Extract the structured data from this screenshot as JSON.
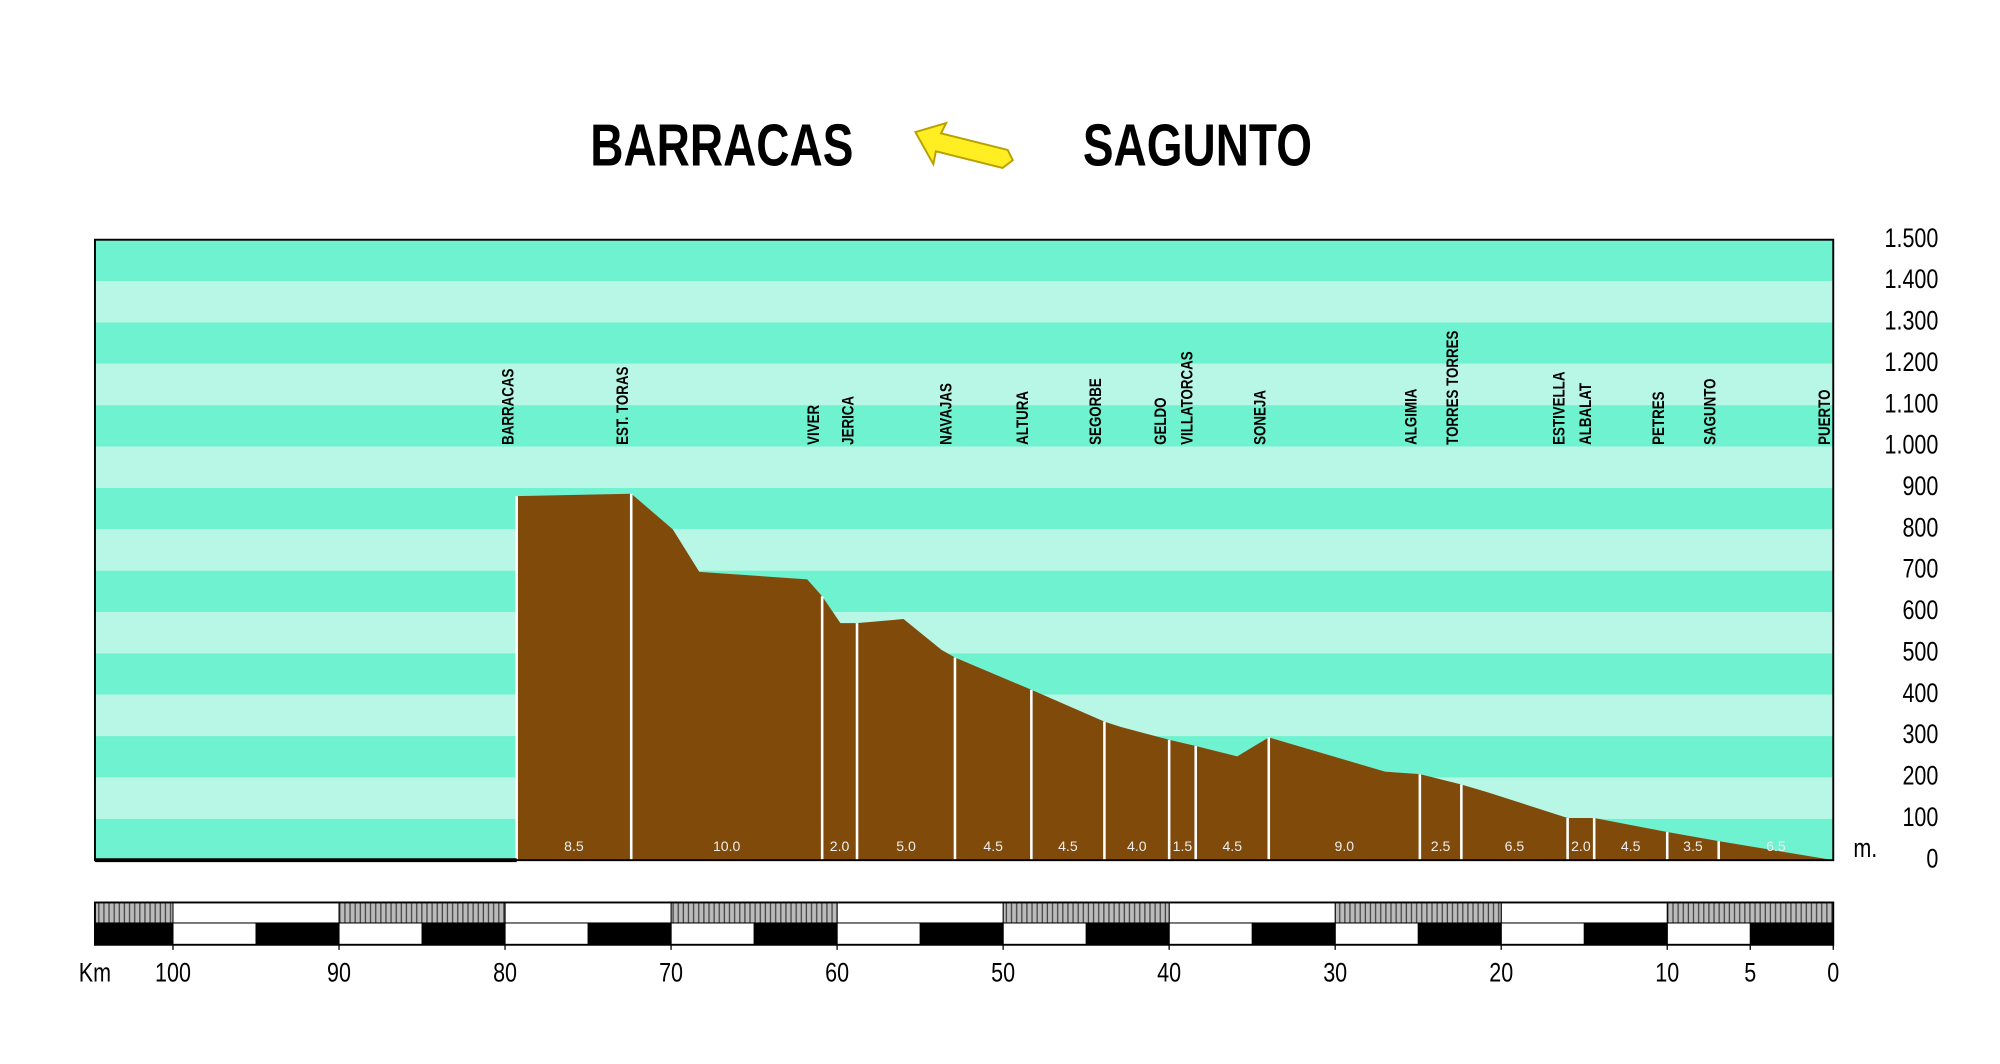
{
  "chart_data": {
    "type": "area",
    "title_left": "BARRACAS",
    "title_right": "SAGUNTO",
    "x_label": "Km",
    "y_label": "m.",
    "x": [
      79.3,
      72.4,
      69.9,
      68.3,
      61.8,
      60.9,
      59.8,
      58.8,
      56.0,
      53.7,
      52.9,
      48.3,
      43.9,
      42.9,
      40.0,
      38.4,
      35.9,
      34.0,
      27.0,
      24.9,
      22.4,
      20.8,
      16.0,
      14.4,
      10.0,
      6.9,
      0
    ],
    "values": [
      880,
      886,
      800,
      697,
      679,
      638,
      573,
      573,
      583,
      508,
      490,
      412,
      335,
      322,
      291,
      276,
      251,
      297,
      214,
      208,
      183,
      164,
      102,
      102,
      68,
      46,
      0
    ],
    "color": "#7f4a0a",
    "stations": [
      {
        "name": "BARRACAS",
        "km": 79.3
      },
      {
        "name": "EST. TORAS",
        "km": 72.4
      },
      {
        "name": "VIVER",
        "km": 60.9
      },
      {
        "name": "JERICA",
        "km": 58.8
      },
      {
        "name": "NAVAJAS",
        "km": 52.9
      },
      {
        "name": "ALTURA",
        "km": 48.3
      },
      {
        "name": "SEGORBE",
        "km": 43.9
      },
      {
        "name": "GELDO",
        "km": 40.0
      },
      {
        "name": "VILLATORCAS",
        "km": 38.4
      },
      {
        "name": "SONEJA",
        "km": 34.0
      },
      {
        "name": "ALGIMIA",
        "km": 24.9
      },
      {
        "name": "TORRES TORRES",
        "km": 22.4
      },
      {
        "name": "ESTIVELLA",
        "km": 16.0
      },
      {
        "name": "ALBALAT",
        "km": 14.4
      },
      {
        "name": "PETRES",
        "km": 10.0
      },
      {
        "name": "SAGUNTO",
        "km": 6.9
      },
      {
        "name": "PUERTO",
        "km": 0
      }
    ],
    "segment_labels": [
      "8.5",
      "10.0",
      "2.0",
      "5.0",
      "4.5",
      "4.5",
      "4.0",
      "1.5",
      "4.5",
      "9.0",
      "2.5",
      "6.5",
      "2.0",
      "4.5",
      "3.5",
      "6.5"
    ],
    "xlim": [
      104.7,
      0
    ],
    "xticks": [
      100,
      90,
      80,
      70,
      60,
      50,
      40,
      30,
      20,
      10,
      5,
      0
    ],
    "ylim": [
      0,
      1500
    ],
    "yticks": [
      {
        "value": 1500,
        "label": "1.500"
      },
      {
        "value": 1400,
        "label": "1.400"
      },
      {
        "value": 1300,
        "label": "1.300"
      },
      {
        "value": 1200,
        "label": "1.200"
      },
      {
        "value": 1100,
        "label": "1.100"
      },
      {
        "value": 1000,
        "label": "1.000"
      },
      900,
      800,
      700,
      600,
      500,
      400,
      300,
      200,
      100,
      0
    ],
    "band_colors": [
      "#6ef2cf",
      "#b8f6e5"
    ]
  }
}
